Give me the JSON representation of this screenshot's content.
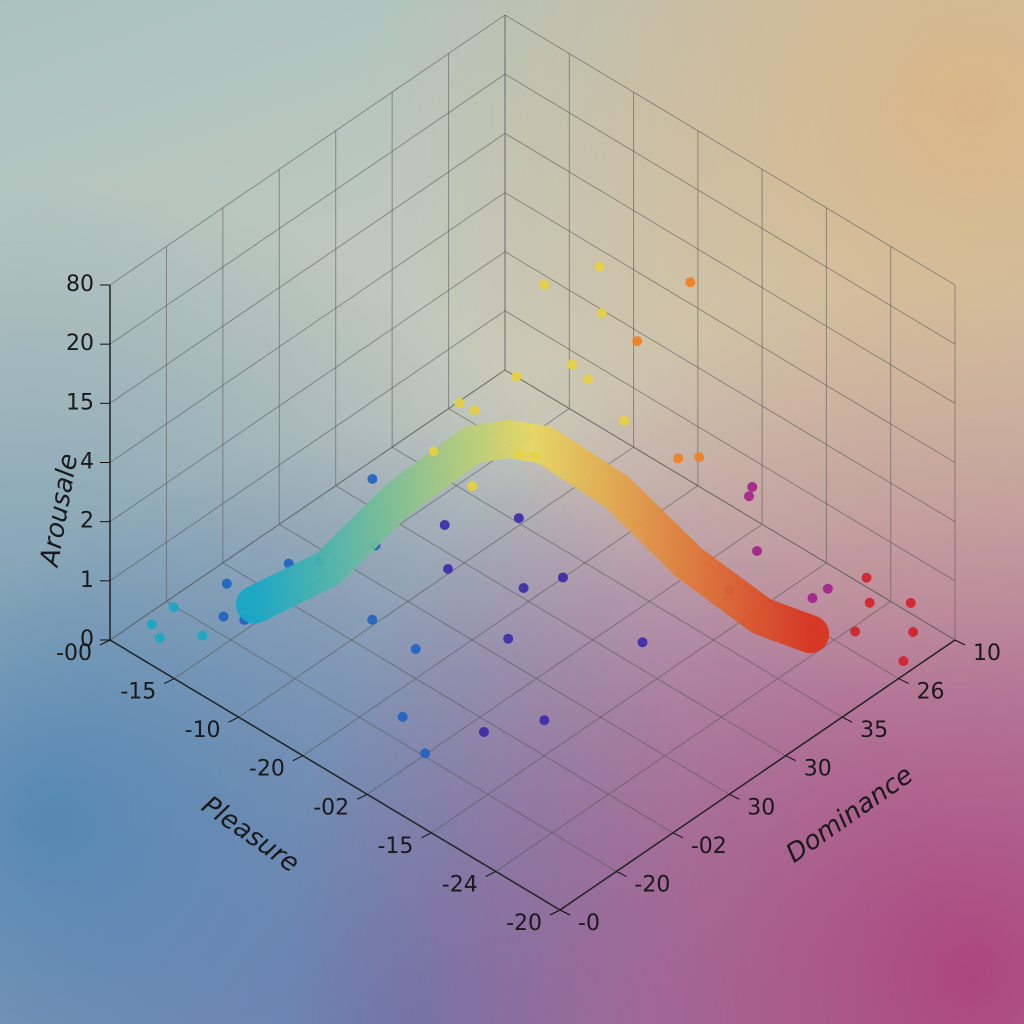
{
  "chart_data": {
    "type": "scatter3d",
    "x_label": "Pleasure",
    "y_label": "Dominance",
    "z_label": "Arousale",
    "xlim": [
      0,
      7
    ],
    "ylim": [
      0,
      7
    ],
    "zlim": [
      0,
      6
    ],
    "xticks": [
      {
        "value": 0,
        "label": "-00"
      },
      {
        "value": 1,
        "label": "-15"
      },
      {
        "value": 2,
        "label": "-10"
      },
      {
        "value": 3,
        "label": "-20"
      },
      {
        "value": 4,
        "label": "-02"
      },
      {
        "value": 5,
        "label": "-15"
      },
      {
        "value": 6,
        "label": "-24"
      },
      {
        "value": 7,
        "label": "-20"
      }
    ],
    "yticks": [
      {
        "value": 0,
        "label": "-0"
      },
      {
        "value": 1,
        "label": "-20"
      },
      {
        "value": 2,
        "label": "-02"
      },
      {
        "value": 3,
        "label": "30"
      },
      {
        "value": 4,
        "label": "30"
      },
      {
        "value": 5,
        "label": "35"
      },
      {
        "value": 6,
        "label": "26"
      },
      {
        "value": 7,
        "label": "10"
      }
    ],
    "zticks": [
      0,
      1,
      2,
      {
        "value": 3,
        "label": "4"
      },
      {
        "value": 4,
        "label": "15"
      },
      {
        "value": 5,
        "label": "20"
      },
      {
        "value": 6,
        "label": "80"
      }
    ],
    "grid": true,
    "colorscale_low": [
      "#19a7c4",
      "#1f62c2",
      "#3a2aa8",
      "#a3208a",
      "#d2202a"
    ],
    "colorscale_high": [
      "#1ab2b0",
      "#4cc060",
      "#e8d040",
      "#f08020",
      "#d82a1e"
    ],
    "points": {
      "pleasure": [
        0.3,
        0.6,
        0.2,
        1,
        0.8,
        1.3,
        0.5,
        3,
        3.5,
        2.5,
        4,
        4.5,
        3.8,
        2.8,
        4.2,
        5,
        3.2,
        6.7,
        6.4,
        6.9,
        6.2,
        5.8,
        6.5,
        5.9,
        3.3,
        3.8,
        2.9,
        3.5,
        4.1,
        3,
        3.7,
        2.6,
        4.4,
        3.9,
        2.4,
        4.8,
        4.6,
        5.2,
        1.8,
        2.2,
        5.5,
        4.9,
        3.4,
        4.2,
        2.8,
        3.1,
        5.6,
        1.5,
        5.3,
        2.1,
        4.5,
        6.1,
        1.2
      ],
      "dominance": [
        0.4,
        0.2,
        0.9,
        0.5,
        1.1,
        0.9,
        1.5,
        2,
        1.2,
        1.8,
        2.5,
        1.5,
        3,
        2.8,
        0.8,
        2,
        3.6,
        6.6,
        6.9,
        6.2,
        6.4,
        6.8,
        5.8,
        6,
        3.5,
        3.2,
        3.9,
        4.2,
        3.8,
        3,
        4.5,
        3.5,
        4.1,
        4.9,
        3,
        4.6,
        5.2,
        5.4,
        2.6,
        2.2,
        5.2,
        5.8,
        4.8,
        5.5,
        4.5,
        2.4,
        4.6,
        2,
        3.4,
        3.8,
        2.9,
        5.5,
        1.8
      ],
      "arousal": [
        0.2,
        0.3,
        0.1,
        0.4,
        0.2,
        0.6,
        0.3,
        0.5,
        0.2,
        0.8,
        1,
        0.4,
        1.4,
        1.2,
        0.3,
        0.6,
        1.8,
        0.2,
        0.3,
        0.1,
        0.5,
        0.4,
        0.6,
        0.8,
        3,
        3.5,
        3.8,
        4.2,
        4.6,
        2.6,
        5,
        3.3,
        3.9,
        4.4,
        2.8,
        3.2,
        2.7,
        2.3,
        2.2,
        1.6,
        1.7,
        2,
        5.4,
        5.2,
        4.9,
        2.4,
        1.5,
        1,
        1.2,
        2.9,
        2.1,
        1.1,
        0.9
      ]
    },
    "curve": {
      "t": [
        1.2,
        1.8,
        2.4,
        3,
        3.3,
        3.6,
        4.2,
        4.8,
        5.4,
        5.8
      ],
      "arousal": [
        0.6,
        1.2,
        2.4,
        3.3,
        3.4,
        3.3,
        2.5,
        1.3,
        0.4,
        0.1
      ],
      "colors": [
        "#16a8c6",
        "#e8d860",
        "#d8321c"
      ]
    }
  }
}
